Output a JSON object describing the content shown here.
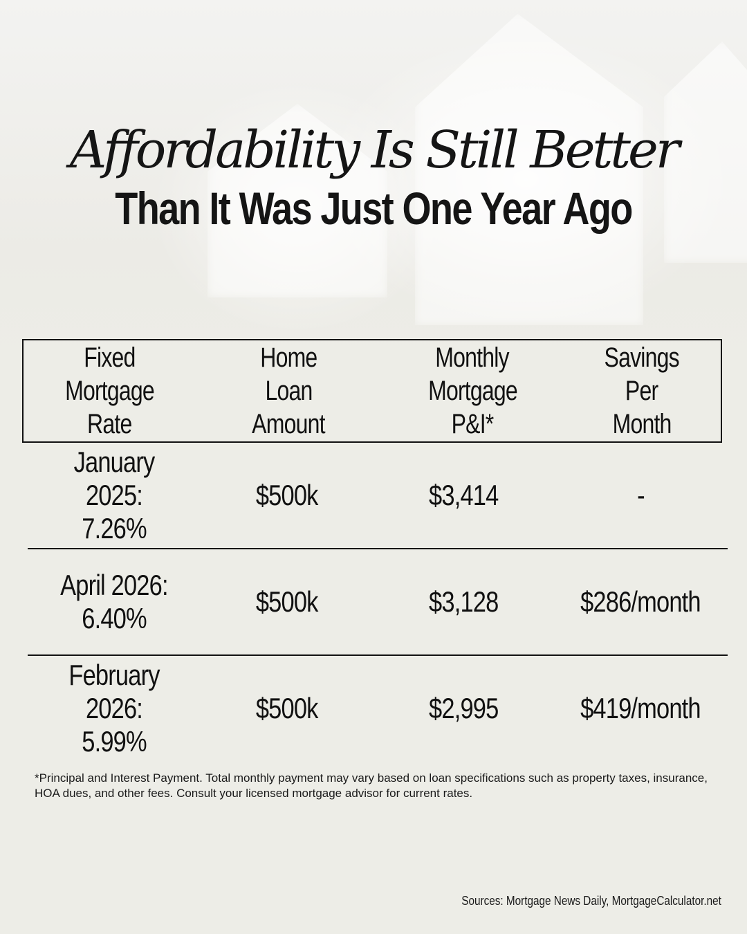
{
  "title": {
    "line1": "Affordability Is Still Better",
    "line2": "Than It Was Just One Year Ago"
  },
  "table": {
    "headers": [
      [
        "Fixed",
        "Mortgage",
        "Rate"
      ],
      [
        "Home",
        "Loan",
        "Amount"
      ],
      [
        "Monthly",
        "Mortgage",
        "P&I*"
      ],
      [
        "Savings",
        "Per",
        "Month"
      ]
    ],
    "rows": [
      {
        "period": "January 2025:",
        "rate": "7.26%",
        "loan": "$500k",
        "payment": "$3,414",
        "savings": "-"
      },
      {
        "period": "April 2026:",
        "rate": "6.40%",
        "loan": "$500k",
        "payment": "$3,128",
        "savings": "$286/month"
      },
      {
        "period": "February 2026:",
        "rate": "5.99%",
        "loan": "$500k",
        "payment": "$2,995",
        "savings": "$419/month"
      }
    ]
  },
  "footnote": "*Principal and Interest Payment. Total monthly payment may vary based on loan specifications such as property taxes, insurance, HOA dues, and other fees. Consult your licensed mortgage advisor for current rates.",
  "sources": "Sources: Mortgage News Daily, MortgageCalculator.net"
}
